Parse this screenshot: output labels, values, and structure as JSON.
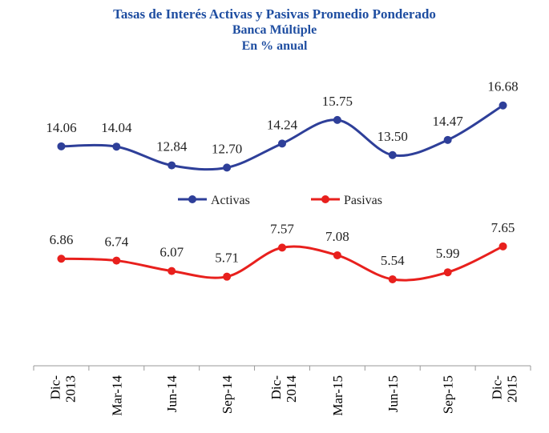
{
  "chart_data": {
    "type": "line",
    "title": "Tasas de Interés Activas y Pasivas Promedio Ponderado",
    "subtitle": [
      "Banca Múltiple",
      "En % anual"
    ],
    "categories": [
      "Dic-\n2013",
      "Mar-14",
      "Jun-14",
      "Sep-14",
      "Dic-\n2014",
      "Mar-15",
      "Jun-15",
      "Sep-15",
      "Dic-\n2015"
    ],
    "series": [
      {
        "name": "Activas",
        "color": "#2e3f99",
        "values": [
          14.06,
          14.04,
          12.84,
          12.7,
          14.24,
          15.75,
          13.5,
          14.47,
          16.68
        ],
        "labels": [
          "14.06",
          "14.04",
          "12.84",
          "12.70",
          "14.24",
          "15.75",
          "13.50",
          "14.47",
          "16.68"
        ]
      },
      {
        "name": "Pasivas",
        "color": "#e8201d",
        "values": [
          6.86,
          6.74,
          6.07,
          5.71,
          7.57,
          7.08,
          5.54,
          5.99,
          7.65
        ],
        "labels": [
          "6.86",
          "6.74",
          "6.07",
          "5.71",
          "7.57",
          "7.08",
          "5.54",
          "5.99",
          "7.65"
        ]
      }
    ],
    "ylim": [
      0,
      18
    ],
    "smooth": true,
    "grid": false,
    "y_axis_visible": false,
    "legend": "center",
    "title_color": "#1f4ea1"
  }
}
